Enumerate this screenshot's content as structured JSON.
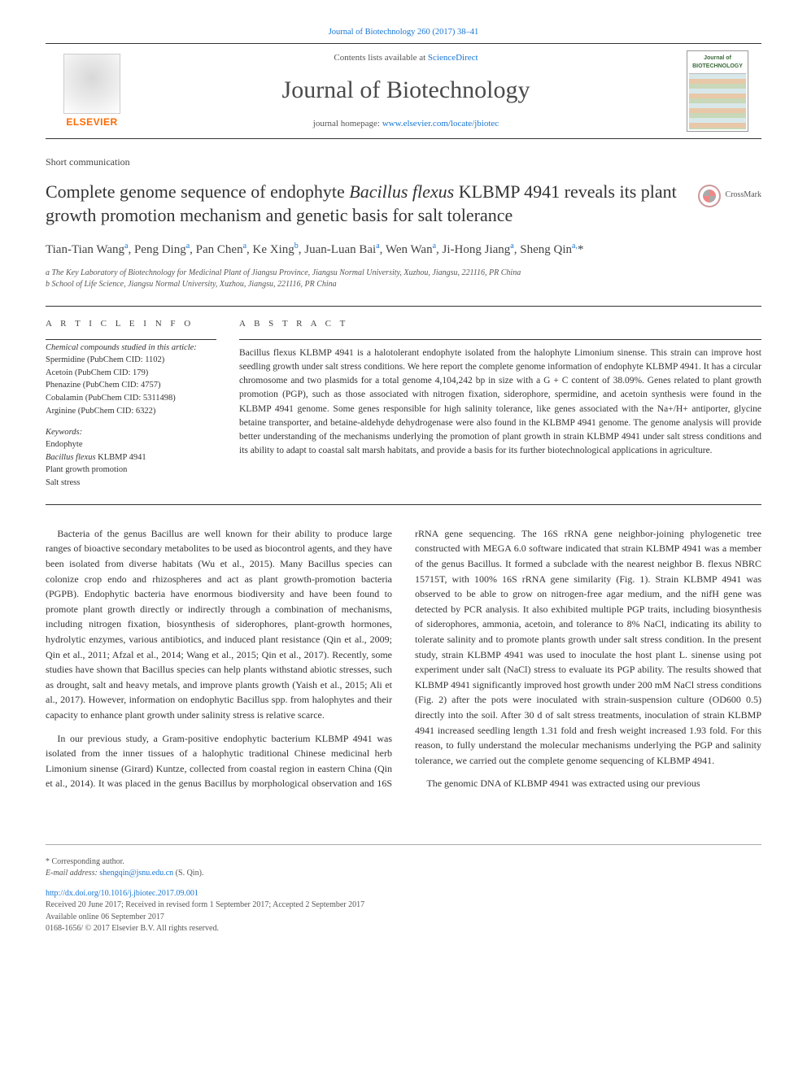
{
  "page_bg": "#ffffff",
  "text_color": "#333333",
  "link_color": "#1976d2",
  "accent_orange": "#ff6a00",
  "header": {
    "top_citation": "Journal of Biotechnology 260 (2017) 38–41",
    "contents_prefix": "Contents lists available at ",
    "contents_link": "ScienceDirect",
    "journal_name": "Journal of Biotechnology",
    "homepage_prefix": "journal homepage: ",
    "homepage_url": "www.elsevier.com/locate/jbiotec",
    "publisher_logo_text": "ELSEVIER",
    "cover_title": "Journal of BIOTECHNOLOGY"
  },
  "crossmark_label": "CrossMark",
  "section_type": "Short communication",
  "title_plain_before_em": "Complete genome sequence of endophyte ",
  "title_em": "Bacillus flexus",
  "title_plain_after_em": " KLBMP 4941 reveals its plant growth promotion mechanism and genetic basis for salt tolerance",
  "authors_html": "Tian-Tian Wang<sup>a</sup>, Peng Ding<sup>a</sup>, Pan Chen<sup>a</sup>, Ke Xing<sup>b</sup>, Juan-Luan Bai<sup>a</sup>, Wen Wan<sup>a</sup>, Ji-Hong Jiang<sup>a</sup>, Sheng Qin<sup>a,</sup>*",
  "affiliations": {
    "a": "a The Key Laboratory of Biotechnology for Medicinal Plant of Jiangsu Province, Jiangsu Normal University, Xuzhou, Jiangsu, 221116, PR China",
    "b": "b School of Life Science, Jiangsu Normal University, Xuzhou, Jiangsu, 221116, PR China"
  },
  "article_info": {
    "heading": "A R T I C L E  I N F O",
    "compounds_heading": "Chemical compounds studied in this article:",
    "compounds": [
      "Spermidine (PubChem CID: 1102)",
      "Acetoin (PubChem CID: 179)",
      "Phenazine (PubChem CID: 4757)",
      "Cobalamin (PubChem CID: 5311498)",
      "Arginine (PubChem CID: 6322)"
    ],
    "keywords_heading": "Keywords:",
    "keywords": [
      "Endophyte",
      "Bacillus flexus KLBMP 4941",
      "Plant growth promotion",
      "Salt stress"
    ]
  },
  "abstract": {
    "heading": "A B S T R A C T",
    "text": "Bacillus flexus KLBMP 4941 is a halotolerant endophyte isolated from the halophyte Limonium sinense. This strain can improve host seedling growth under salt stress conditions. We here report the complete genome information of endophyte KLBMP 4941. It has a circular chromosome and two plasmids for a total genome 4,104,242 bp in size with a G + C content of 38.09%. Genes related to plant growth promotion (PGP), such as those associated with nitrogen fixation, siderophore, spermidine, and acetoin synthesis were found in the KLBMP 4941 genome. Some genes responsible for high salinity tolerance, like genes associated with the Na+/H+ antiporter, glycine betaine transporter, and betaine-aldehyde dehydrogenase were also found in the KLBMP 4941 genome. The genome analysis will provide better understanding of the mechanisms underlying the promotion of plant growth in strain KLBMP 4941 under salt stress conditions and its ability to adapt to coastal salt marsh habitats, and provide a basis for its further biotechnological applications in agriculture."
  },
  "body": {
    "p1": "Bacteria of the genus Bacillus are well known for their ability to produce large ranges of bioactive secondary metabolites to be used as biocontrol agents, and they have been isolated from diverse habitats (Wu et al., 2015). Many Bacillus species can colonize crop endo and rhizospheres and act as plant growth-promotion bacteria (PGPB). Endophytic bacteria have enormous biodiversity and have been found to promote plant growth directly or indirectly through a combination of mechanisms, including nitrogen fixation, biosynthesis of siderophores, plant-growth hormones, hydrolytic enzymes, various antibiotics, and induced plant resistance (Qin et al., 2009; Qin et al., 2011; Afzal et al., 2014; Wang et al., 2015; Qin et al., 2017). Recently, some studies have shown that Bacillus species can help plants withstand abiotic stresses, such as drought, salt and heavy metals, and improve plants growth (Yaish et al., 2015; Ali et al., 2017). However, information on endophytic Bacillus spp. from halophytes and their capacity to enhance plant growth under salinity stress is relative scarce.",
    "p2": "In our previous study, a Gram-positive endophytic bacterium KLBMP 4941 was isolated from the inner tissues of a halophytic traditional Chinese medicinal herb Limonium sinense (Girard) Kuntze, collected from coastal region in eastern China (Qin et al., 2014). It was placed in the genus Bacillus by morphological observation and 16S rRNA gene sequencing. The 16S rRNA gene neighbor-joining phylogenetic tree constructed with MEGA 6.0 software indicated that strain KLBMP 4941 was a member of the genus Bacillus. It formed a subclade with the nearest neighbor B. flexus NBRC 15715T, with 100% 16S rRNA gene similarity (Fig. 1). Strain KLBMP 4941 was observed to be able to grow on nitrogen-free agar medium, and the nifH gene was detected by PCR analysis. It also exhibited multiple PGP traits, including biosynthesis of siderophores, ammonia, acetoin, and tolerance to 8% NaCl, indicating its ability to tolerate salinity and to promote plants growth under salt stress condition. In the present study, strain KLBMP 4941 was used to inoculate the host plant L. sinense using pot experiment under salt (NaCl) stress to evaluate its PGP ability. The results showed that KLBMP 4941 significantly improved host growth under 200 mM NaCl stress conditions (Fig. 2) after the pots were inoculated with strain-suspension culture (OD600 0.5) directly into the soil. After 30 d of salt stress treatments, inoculation of strain KLBMP 4941 increased seedling length 1.31 fold and fresh weight increased 1.93 fold. For this reason, to fully understand the molecular mechanisms underlying the PGP and salinity tolerance, we carried out the complete genome sequencing of KLBMP 4941.",
    "p3": "The genomic DNA of KLBMP 4941 was extracted using our previous"
  },
  "footer": {
    "corresponding": "* Corresponding author.",
    "email_label": "E-mail address: ",
    "email": "shengqin@jsnu.edu.cn",
    "email_suffix": " (S. Qin).",
    "doi": "http://dx.doi.org/10.1016/j.jbiotec.2017.09.001",
    "received": "Received 20 June 2017; Received in revised form 1 September 2017; Accepted 2 September 2017",
    "online": "Available online 06 September 2017",
    "copyright": "0168-1656/ © 2017 Elsevier B.V. All rights reserved."
  }
}
